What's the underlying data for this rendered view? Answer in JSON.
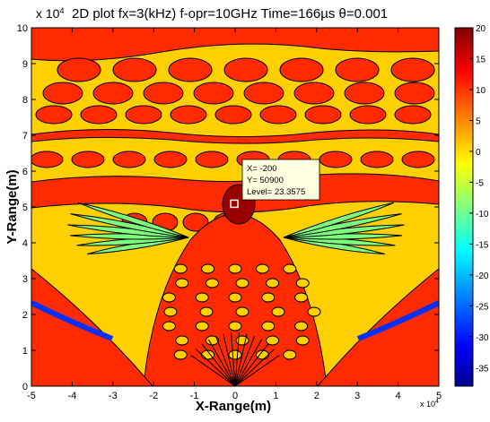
{
  "chart_data": {
    "type": "heatmap",
    "title": "2D plot  fx=3(kHz)   f-opr=10GHz  Time=166µs  θ=0.001",
    "xlabel": "X-Range(m)",
    "ylabel": "Y-Range(m)",
    "x_exponent_label": "x 10",
    "x_exponent_power": "4",
    "y_exponent_label": "x 10",
    "y_exponent_power": "4",
    "xlim": [
      -5,
      5
    ],
    "ylim": [
      0,
      10
    ],
    "x_ticks": [
      "-5",
      "-4",
      "-3",
      "-2",
      "-1",
      "0",
      "1",
      "2",
      "3",
      "4",
      "5"
    ],
    "y_ticks": [
      "0",
      "1",
      "2",
      "3",
      "4",
      "5",
      "6",
      "7",
      "8",
      "9",
      "10"
    ],
    "colorbar": {
      "min": -38,
      "max": 20,
      "tick_labels": [
        "20",
        "15",
        "10",
        "5",
        "0",
        "-5",
        "-10",
        "-15",
        "-20",
        "-25",
        "-30",
        "-35"
      ],
      "colormap": "jet",
      "colors": [
        "#00008f",
        "#0000ff",
        "#0080ff",
        "#00ffff",
        "#80ff80",
        "#ffff00",
        "#ff8000",
        "#ff0000",
        "#800000"
      ]
    },
    "datatip": {
      "x_text": "X= -200",
      "y_text": "Y= 50900",
      "level_text": "Level= 23.3575",
      "x": -0.02,
      "y": 5.09,
      "level": 23.3575
    },
    "grid": false
  }
}
